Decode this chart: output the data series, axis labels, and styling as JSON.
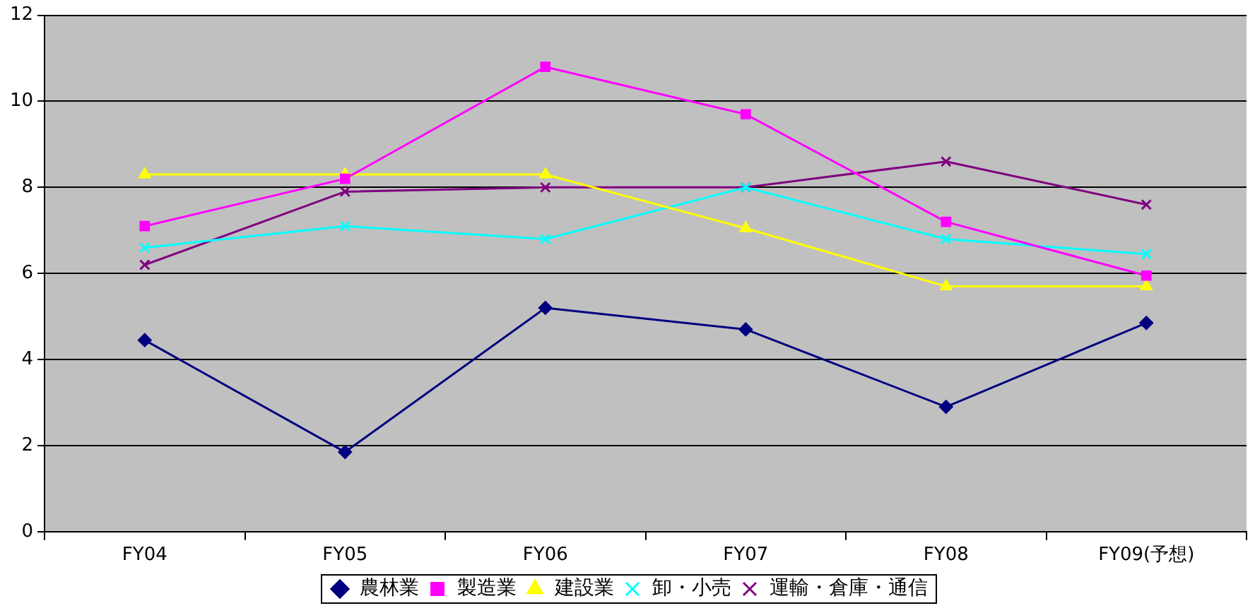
{
  "chart_data": {
    "type": "line",
    "categories": [
      "FY04",
      "FY05",
      "FY06",
      "FY07",
      "FY08",
      "FY09(予想)"
    ],
    "series": [
      {
        "name": "農林業",
        "color": "#000080",
        "marker": "diamond",
        "values": [
          4.45,
          1.85,
          5.2,
          4.7,
          2.9,
          4.85
        ]
      },
      {
        "name": "製造業",
        "color": "#ff00ff",
        "marker": "square",
        "values": [
          7.1,
          8.2,
          10.8,
          9.7,
          7.2,
          5.95
        ]
      },
      {
        "name": "建設業",
        "color": "#ffff00",
        "marker": "triangle",
        "values": [
          8.3,
          8.3,
          8.3,
          7.05,
          5.7,
          5.7
        ]
      },
      {
        "name": "卸・小売",
        "color": "#00ffff",
        "marker": "cross",
        "values": [
          6.6,
          7.1,
          6.8,
          8.0,
          6.8,
          6.45
        ]
      },
      {
        "name": "運輸・倉庫・通信",
        "color": "#800080",
        "marker": "cross",
        "values": [
          6.2,
          7.9,
          8.0,
          8.0,
          8.6,
          7.6
        ]
      }
    ],
    "ylim": [
      0,
      12
    ],
    "yticks": [
      0,
      2,
      4,
      6,
      8,
      10,
      12
    ],
    "grid": "y",
    "legend": "bottom"
  }
}
